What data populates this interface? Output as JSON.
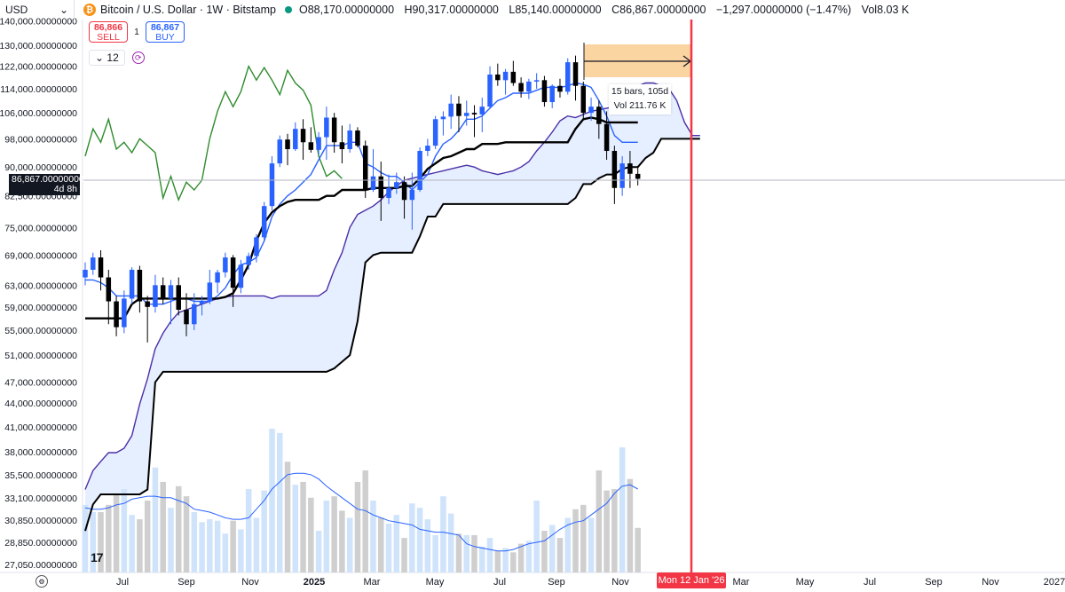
{
  "header": {
    "currency": "USD",
    "symbol": "Bitcoin / U.S. Dollar · 1W · Bitstamp",
    "coin_glyph": "₿",
    "o_label": "O",
    "o_value": "88,170.00000000",
    "h_label": "H",
    "h_value": "90,317.00000000",
    "l_label": "L",
    "l_value": "85,140.00000000",
    "c_label": "C",
    "c_value": "86,867.00000000",
    "change": "−1,297.00000000 (−1.47%)",
    "vol_label": "Vol",
    "vol_value": "8.03 K"
  },
  "trade": {
    "sell_price": "86,866",
    "sell_label": "SELL",
    "spread": "1",
    "buy_price": "86,867",
    "buy_label": "BUY"
  },
  "interval": {
    "value": "12",
    "chevron": "chevron-down-icon",
    "sync_icon": "sync-icon"
  },
  "tooltip": {
    "line1": "15 bars, 105d",
    "line2": "Vol 211.76 K"
  },
  "price_tag": {
    "price": "86,867.00000000",
    "countdown": "4d 8h"
  },
  "date_tag": "Mon 12 Jan '26",
  "colors": {
    "up": "#2962ff",
    "down": "#000000",
    "tenkan": "#2962ff",
    "kijun": "#000000",
    "chikou": "#2e8b2e",
    "span_a": "#4a2fa6",
    "span_b": "#000000",
    "cloud": "#ddeaff",
    "vol_up": "#cfe3fb",
    "vol_down": "#cfcfcf",
    "vol_ma": "#2962ff",
    "marker": "#f23645"
  },
  "chart_data": {
    "type": "candlestick",
    "y_scale": "log",
    "y_ticks": [
      "27,050.00000000",
      "28,850.00000000",
      "30,850.00000000",
      "33,100.00000000",
      "35,500.00000000",
      "38,000.00000000",
      "41,000.00000000",
      "44,000.00000000",
      "47,000.00000000",
      "51,000.00000000",
      "55,000.00000000",
      "59,000.00000000",
      "63,000.00000000",
      "69,000.00000000",
      "75,000.00000000",
      "82,500.00000000",
      "90,000.00000000",
      "98,000.00000000",
      "106,000.00000000",
      "114,000.00000000",
      "122,000.00000000",
      "130,000.00000000",
      "140,000.00000000"
    ],
    "x_ticks": [
      "Jul",
      "Sep",
      "Nov",
      "2025",
      "Mar",
      "May",
      "Jul",
      "Sep",
      "Nov",
      "Jan",
      "Mar",
      "May",
      "Jul",
      "Sep",
      "Nov",
      "2027"
    ],
    "candles": [
      [
        64500,
        67500,
        63000,
        66000
      ],
      [
        66000,
        69500,
        65000,
        68500
      ],
      [
        68500,
        70000,
        62000,
        64500
      ],
      [
        64500,
        66000,
        56000,
        60000
      ],
      [
        60000,
        61000,
        54000,
        55500
      ],
      [
        55500,
        62000,
        54500,
        60500
      ],
      [
        60500,
        66500,
        59500,
        66000
      ],
      [
        66000,
        66800,
        58000,
        60000
      ],
      [
        60000,
        61000,
        53000,
        59000
      ],
      [
        59000,
        65000,
        58000,
        63000
      ],
      [
        63000,
        64500,
        59500,
        60500
      ],
      [
        60500,
        64000,
        56000,
        63000
      ],
      [
        63000,
        64500,
        57500,
        58500
      ],
      [
        58500,
        61500,
        54000,
        56000
      ],
      [
        56000,
        61500,
        55000,
        59500
      ],
      [
        59500,
        61000,
        57500,
        60000
      ],
      [
        60000,
        66000,
        59500,
        63500
      ],
      [
        63500,
        66000,
        61500,
        65500
      ],
      [
        65500,
        69500,
        64500,
        68500
      ],
      [
        68500,
        69000,
        59000,
        62500
      ],
      [
        62500,
        68000,
        61500,
        67000
      ],
      [
        67000,
        69500,
        66000,
        68800
      ],
      [
        68800,
        73500,
        67500,
        72800
      ],
      [
        72800,
        81000,
        72000,
        80000
      ],
      [
        80000,
        93000,
        79000,
        91000
      ],
      [
        91000,
        99000,
        90000,
        97800
      ],
      [
        97800,
        99500,
        90500,
        95000
      ],
      [
        95000,
        103000,
        94500,
        101000
      ],
      [
        101000,
        104000,
        92000,
        97000
      ],
      [
        97000,
        101500,
        94000,
        94800
      ],
      [
        94800,
        100000,
        93500,
        98500
      ],
      [
        98500,
        108000,
        92000,
        104500
      ],
      [
        104500,
        106000,
        94000,
        97000
      ],
      [
        97000,
        102000,
        91000,
        95000
      ],
      [
        95000,
        102500,
        94000,
        100500
      ],
      [
        100500,
        101500,
        95500,
        96000
      ],
      [
        96000,
        97500,
        82000,
        84000
      ],
      [
        84000,
        95000,
        83500,
        87500
      ],
      [
        87500,
        91500,
        76500,
        82000
      ],
      [
        82000,
        88000,
        80500,
        84500
      ],
      [
        84500,
        88500,
        83000,
        86000
      ],
      [
        86000,
        87500,
        77000,
        81500
      ],
      [
        81500,
        88500,
        74500,
        84000
      ],
      [
        84000,
        95500,
        83500,
        94500
      ],
      [
        94500,
        98000,
        93000,
        96000
      ],
      [
        96000,
        105000,
        95000,
        104000
      ],
      [
        104000,
        106500,
        99000,
        104800
      ],
      [
        104800,
        112000,
        101000,
        109000
      ],
      [
        109000,
        111500,
        100000,
        105000
      ],
      [
        105000,
        110000,
        102000,
        106000
      ],
      [
        106000,
        108500,
        98500,
        105500
      ],
      [
        105500,
        111000,
        100000,
        108000
      ],
      [
        108000,
        122000,
        107500,
        119000
      ],
      [
        119000,
        123000,
        115000,
        117000
      ],
      [
        117000,
        121000,
        112000,
        120000
      ],
      [
        120000,
        124000,
        115000,
        116000
      ],
      [
        116000,
        118000,
        111000,
        113000
      ],
      [
        113000,
        117500,
        110500,
        116500
      ],
      [
        116500,
        119500,
        114000,
        117000
      ],
      [
        117000,
        118500,
        108000,
        109500
      ],
      [
        109500,
        115500,
        107500,
        115000
      ],
      [
        115000,
        117500,
        111000,
        113000
      ],
      [
        113000,
        125000,
        112000,
        123500
      ],
      [
        123500,
        126000,
        110000,
        115000
      ],
      [
        115000,
        116500,
        104000,
        106000
      ],
      [
        106000,
        111000,
        103500,
        108000
      ],
      [
        108000,
        110000,
        98000,
        102500
      ],
      [
        102500,
        106500,
        92000,
        94500
      ],
      [
        94500,
        96000,
        80500,
        84500
      ],
      [
        84500,
        93000,
        82500,
        91000
      ],
      [
        91000,
        94500,
        84500,
        88200
      ],
      [
        88170,
        90317,
        85140,
        86867
      ]
    ],
    "tenkan": [
      64000,
      64000,
      63500,
      62500,
      61000,
      61000,
      61000,
      61000,
      59500,
      59500,
      59500,
      60000,
      60500,
      60500,
      60000,
      60000,
      60000,
      61000,
      62500,
      65000,
      67000,
      67500,
      68500,
      72000,
      77500,
      80500,
      82500,
      84000,
      86000,
      88000,
      92000,
      96000,
      96000,
      96000,
      97000,
      97000,
      91000,
      90000,
      88500,
      87500,
      87500,
      86000,
      84000,
      86000,
      88000,
      93000,
      96500,
      98000,
      100500,
      104000,
      104000,
      105000,
      107500,
      110000,
      111000,
      112500,
      112500,
      112500,
      113500,
      114500,
      114500,
      114500,
      115000,
      116000,
      115500,
      114500,
      110000,
      105000,
      99000,
      97000,
      97000,
      97000
    ],
    "kijun": [
      57000,
      57000,
      57000,
      57000,
      57000,
      57000,
      59500,
      60500,
      60500,
      60500,
      60500,
      60500,
      60500,
      60500,
      60500,
      60500,
      60500,
      60500,
      60800,
      61500,
      64000,
      67000,
      72000,
      76000,
      78500,
      80000,
      81000,
      81500,
      81500,
      81500,
      81500,
      82500,
      82500,
      84000,
      84000,
      84000,
      84000,
      84500,
      84500,
      84500,
      84500,
      85000,
      85000,
      87000,
      89500,
      91000,
      92500,
      93000,
      94000,
      95000,
      95000,
      96500,
      96500,
      96500,
      97000,
      97000,
      97000,
      97000,
      97000,
      97000,
      97000,
      97000,
      97000,
      101000,
      104000,
      104500,
      104000,
      103000,
      103000,
      103000,
      103000,
      103000
    ],
    "chikou": [
      93000,
      101000,
      97000,
      104000,
      95000,
      97000,
      94000,
      98000,
      96000,
      94000,
      82000,
      87500,
      81500,
      86000,
      84000,
      86500,
      98000,
      106500,
      113000,
      108000,
      113000,
      122000,
      117000,
      121500,
      117000,
      112000,
      120500,
      116000,
      113500,
      108500,
      93000,
      87500,
      89000,
      86900
    ],
    "span_a": [
      34000,
      36000,
      37000,
      38000,
      38000,
      38500,
      40000,
      44000,
      47500,
      52000,
      54500,
      56500,
      58000,
      58500,
      59000,
      59500,
      60000,
      60500,
      60800,
      61000,
      61000,
      61000,
      61000,
      61000,
      60500,
      61000,
      61000,
      61000,
      61000,
      61000,
      61000,
      62000,
      66000,
      69500,
      75000,
      78000,
      79000,
      80000,
      81500,
      83500,
      85000,
      86500,
      87000,
      87500,
      88000,
      88500,
      89000,
      89500,
      90000,
      90500,
      90000,
      89000,
      88500,
      88000,
      88500,
      89000,
      90000,
      91500,
      94500,
      97000,
      100000,
      103500,
      105000,
      104500,
      105500,
      106500,
      107000,
      107500,
      108000,
      110000,
      112500,
      115000,
      116000,
      116000,
      115000,
      114000,
      110000,
      103000,
      99000,
      99000
    ],
    "span_b": [
      30000,
      32500,
      33500,
      33500,
      33500,
      33500,
      33500,
      33500,
      34000,
      47000,
      48500,
      48500,
      48500,
      48500,
      48500,
      48500,
      48500,
      48500,
      48500,
      48500,
      48500,
      48500,
      48500,
      48500,
      48500,
      48500,
      48500,
      48500,
      48500,
      48500,
      48500,
      48500,
      49000,
      50000,
      51000,
      56500,
      67500,
      69000,
      69500,
      69500,
      69500,
      69500,
      69500,
      73000,
      77500,
      77500,
      80500,
      80500,
      80500,
      80500,
      80500,
      80500,
      80500,
      80500,
      80500,
      80500,
      80500,
      80500,
      80500,
      80500,
      80500,
      80500,
      80500,
      82000,
      85500,
      85500,
      87000,
      88000,
      88000,
      89500,
      90000,
      90000,
      92500,
      94000,
      98000,
      98000,
      98000,
      98000,
      98000,
      98000
    ],
    "volumes": [
      0.47,
      0.42,
      0.42,
      0.47,
      0.55,
      0.58,
      0.4,
      0.37,
      0.5,
      0.73,
      0.63,
      0.45,
      0.6,
      0.53,
      0.42,
      0.35,
      0.37,
      0.36,
      0.27,
      0.36,
      0.3,
      0.58,
      0.38,
      0.57,
      1.0,
      0.97,
      0.77,
      0.61,
      0.63,
      0.52,
      0.29,
      0.5,
      0.53,
      0.43,
      0.38,
      0.63,
      0.71,
      0.5,
      0.38,
      0.34,
      0.4,
      0.24,
      0.48,
      0.45,
      0.37,
      0.26,
      0.53,
      0.41,
      0.27,
      0.26,
      0.26,
      0.18,
      0.24,
      0.15,
      0.17,
      0.14,
      0.2,
      0.22,
      0.5,
      0.29,
      0.33,
      0.24,
      0.38,
      0.44,
      0.47,
      0.38,
      0.71,
      0.57,
      0.58,
      0.87,
      0.65,
      0.31
    ],
    "vol_ma": [
      0.45,
      0.44,
      0.44,
      0.45,
      0.47,
      0.48,
      0.51,
      0.52,
      0.53,
      0.53,
      0.52,
      0.52,
      0.5,
      0.48,
      0.44,
      0.43,
      0.42,
      0.4,
      0.38,
      0.37,
      0.37,
      0.38,
      0.44,
      0.5,
      0.58,
      0.63,
      0.68,
      0.69,
      0.69,
      0.68,
      0.65,
      0.6,
      0.56,
      0.52,
      0.48,
      0.44,
      0.43,
      0.4,
      0.38,
      0.36,
      0.35,
      0.34,
      0.33,
      0.3,
      0.29,
      0.28,
      0.28,
      0.27,
      0.26,
      0.2,
      0.18,
      0.17,
      0.16,
      0.15,
      0.15,
      0.16,
      0.18,
      0.2,
      0.21,
      0.22,
      0.26,
      0.3,
      0.33,
      0.35,
      0.36,
      0.4,
      0.44,
      0.48,
      0.55,
      0.6,
      0.61,
      0.58
    ],
    "date_marker": "Mon 12 Jan '26",
    "measure": {
      "bars": "15 bars, 105d",
      "vol": "Vol 211.76 K"
    }
  }
}
